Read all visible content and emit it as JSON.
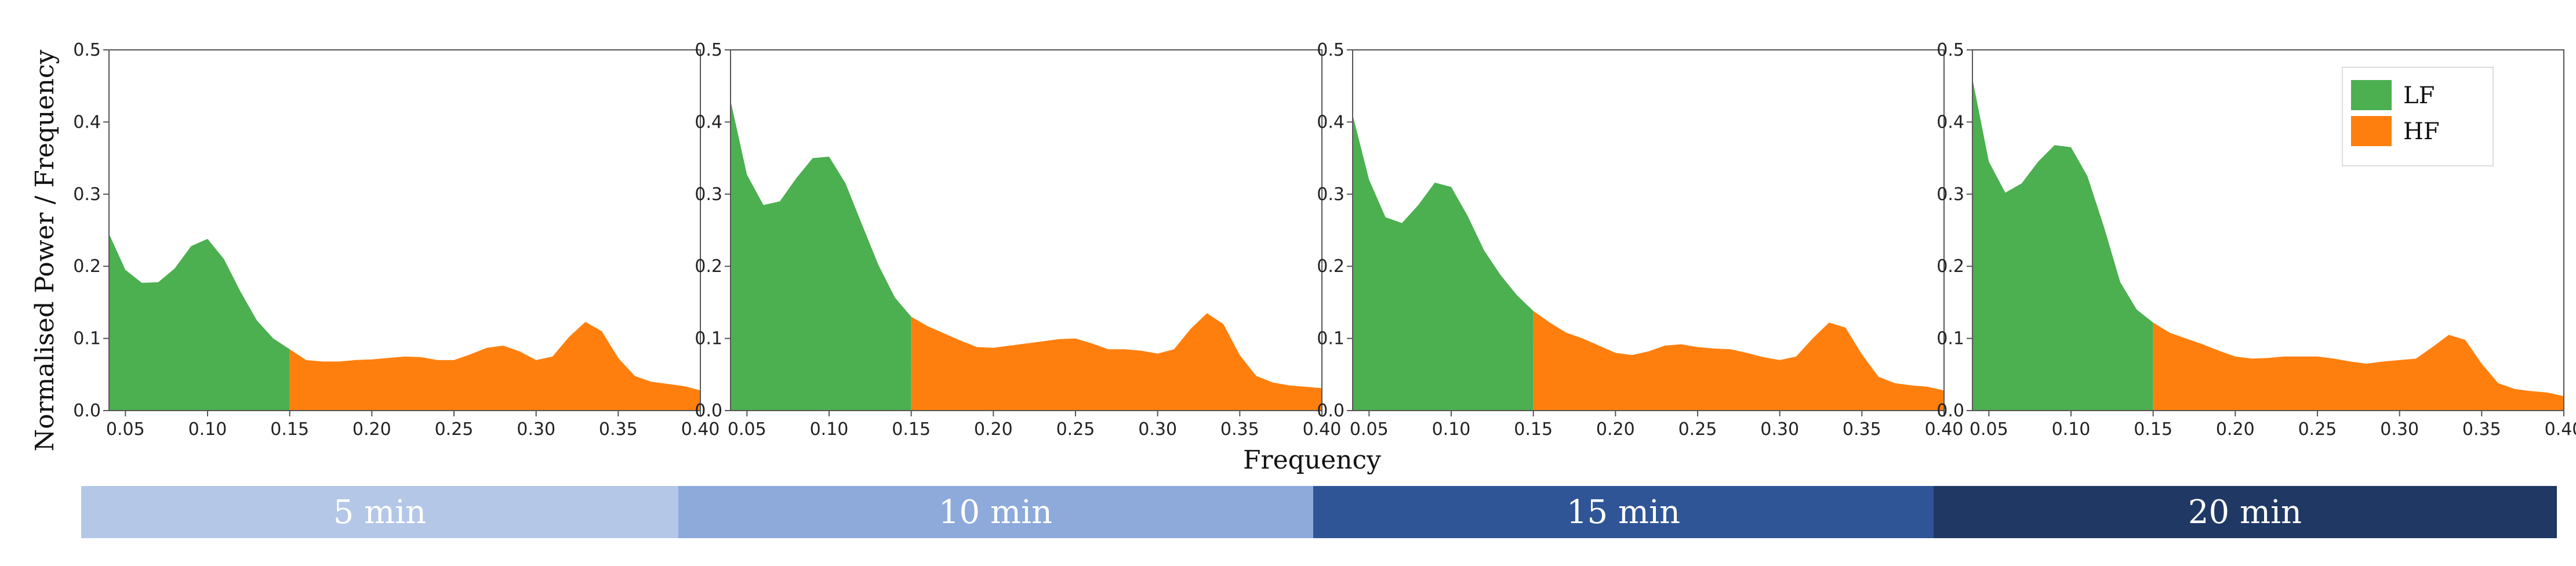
{
  "colors": {
    "lf": "#4caf50",
    "hf": "#ff7f0e",
    "axis": "#555555"
  },
  "y_axis_label": "Normalised Power / Frequency",
  "x_axis_label": "Frequency",
  "legend": [
    {
      "label": "LF",
      "color": "#4caf50"
    },
    {
      "label": "HF",
      "color": "#ff7f0e"
    }
  ],
  "duration_bands": [
    {
      "label": "5 min",
      "color": "#b4c7e7"
    },
    {
      "label": "10 min",
      "color": "#8eaadb"
    },
    {
      "label": "15 min",
      "color": "#2f5597"
    },
    {
      "label": "20 min",
      "color": "#203864"
    }
  ],
  "chart_data": [
    {
      "type": "area",
      "xlim": [
        0.04,
        0.4
      ],
      "ylim": [
        0,
        0.5
      ],
      "x_ticks": [
        "0.05",
        "0.10",
        "0.15",
        "0.20",
        "0.25",
        "0.30",
        "0.35",
        "0.40"
      ],
      "y_ticks": [
        "0.0",
        "0.1",
        "0.2",
        "0.3",
        "0.4",
        "0.5"
      ],
      "x": [
        0.04,
        0.05,
        0.06,
        0.07,
        0.08,
        0.09,
        0.1,
        0.11,
        0.12,
        0.13,
        0.14,
        0.15,
        0.16,
        0.17,
        0.18,
        0.19,
        0.2,
        0.21,
        0.22,
        0.23,
        0.24,
        0.25,
        0.26,
        0.27,
        0.28,
        0.29,
        0.3,
        0.31,
        0.32,
        0.33,
        0.34,
        0.35,
        0.36,
        0.37,
        0.38,
        0.39,
        0.4
      ],
      "y": [
        0.245,
        0.195,
        0.177,
        0.178,
        0.197,
        0.228,
        0.238,
        0.21,
        0.165,
        0.125,
        0.1,
        0.085,
        0.07,
        0.068,
        0.068,
        0.07,
        0.071,
        0.073,
        0.075,
        0.074,
        0.07,
        0.07,
        0.078,
        0.087,
        0.09,
        0.082,
        0.07,
        0.075,
        0.102,
        0.123,
        0.11,
        0.073,
        0.048,
        0.04,
        0.037,
        0.034,
        0.028
      ],
      "series": [
        {
          "name": "LF",
          "x_range": [
            0.04,
            0.15
          ]
        },
        {
          "name": "HF",
          "x_range": [
            0.15,
            0.4
          ]
        }
      ]
    },
    {
      "type": "area",
      "xlim": [
        0.04,
        0.4
      ],
      "ylim": [
        0,
        0.5
      ],
      "x_ticks": [
        "0.05",
        "0.10",
        "0.15",
        "0.20",
        "0.25",
        "0.30",
        "0.35",
        "0.40"
      ],
      "y_ticks": [
        "0.0",
        "0.1",
        "0.2",
        "0.3",
        "0.4",
        "0.5"
      ],
      "x": [
        0.04,
        0.05,
        0.06,
        0.07,
        0.08,
        0.09,
        0.1,
        0.11,
        0.12,
        0.13,
        0.14,
        0.15,
        0.16,
        0.17,
        0.18,
        0.19,
        0.2,
        0.21,
        0.22,
        0.23,
        0.24,
        0.25,
        0.26,
        0.27,
        0.28,
        0.29,
        0.3,
        0.31,
        0.32,
        0.33,
        0.34,
        0.35,
        0.36,
        0.37,
        0.38,
        0.39,
        0.4
      ],
      "y": [
        0.43,
        0.327,
        0.285,
        0.29,
        0.322,
        0.35,
        0.352,
        0.315,
        0.258,
        0.202,
        0.157,
        0.13,
        0.117,
        0.107,
        0.097,
        0.088,
        0.087,
        0.09,
        0.093,
        0.096,
        0.099,
        0.1,
        0.093,
        0.085,
        0.085,
        0.083,
        0.079,
        0.085,
        0.113,
        0.135,
        0.12,
        0.077,
        0.048,
        0.039,
        0.035,
        0.033,
        0.031
      ],
      "series": [
        {
          "name": "LF",
          "x_range": [
            0.04,
            0.15
          ]
        },
        {
          "name": "HF",
          "x_range": [
            0.15,
            0.4
          ]
        }
      ]
    },
    {
      "type": "area",
      "xlim": [
        0.04,
        0.4
      ],
      "ylim": [
        0,
        0.5
      ],
      "x_ticks": [
        "0.05",
        "0.10",
        "0.15",
        "0.20",
        "0.25",
        "0.30",
        "0.35",
        "0.40"
      ],
      "y_ticks": [
        "0.0",
        "0.1",
        "0.2",
        "0.3",
        "0.4",
        "0.5"
      ],
      "x": [
        0.04,
        0.05,
        0.06,
        0.07,
        0.08,
        0.09,
        0.1,
        0.11,
        0.12,
        0.13,
        0.14,
        0.15,
        0.16,
        0.17,
        0.18,
        0.19,
        0.2,
        0.21,
        0.22,
        0.23,
        0.24,
        0.25,
        0.26,
        0.27,
        0.28,
        0.29,
        0.3,
        0.31,
        0.32,
        0.33,
        0.34,
        0.35,
        0.36,
        0.37,
        0.38,
        0.39,
        0.4
      ],
      "y": [
        0.41,
        0.32,
        0.268,
        0.26,
        0.285,
        0.316,
        0.31,
        0.27,
        0.222,
        0.188,
        0.16,
        0.138,
        0.122,
        0.108,
        0.1,
        0.09,
        0.08,
        0.077,
        0.082,
        0.09,
        0.092,
        0.088,
        0.086,
        0.085,
        0.08,
        0.074,
        0.07,
        0.075,
        0.1,
        0.122,
        0.115,
        0.078,
        0.047,
        0.038,
        0.035,
        0.033,
        0.028
      ],
      "series": [
        {
          "name": "LF",
          "x_range": [
            0.04,
            0.15
          ]
        },
        {
          "name": "HF",
          "x_range": [
            0.15,
            0.4
          ]
        }
      ]
    },
    {
      "type": "area",
      "xlim": [
        0.04,
        0.4
      ],
      "ylim": [
        0,
        0.5
      ],
      "x_ticks": [
        "0.05",
        "0.10",
        "0.15",
        "0.20",
        "0.25",
        "0.30",
        "0.35",
        "0.40"
      ],
      "y_ticks": [
        "0.0",
        "0.1",
        "0.2",
        "0.3",
        "0.4",
        "0.5"
      ],
      "x": [
        0.04,
        0.05,
        0.06,
        0.07,
        0.08,
        0.09,
        0.1,
        0.11,
        0.12,
        0.13,
        0.14,
        0.15,
        0.16,
        0.17,
        0.18,
        0.19,
        0.2,
        0.21,
        0.22,
        0.23,
        0.24,
        0.25,
        0.26,
        0.27,
        0.28,
        0.29,
        0.3,
        0.31,
        0.32,
        0.33,
        0.34,
        0.35,
        0.36,
        0.37,
        0.38,
        0.39,
        0.4
      ],
      "y": [
        0.46,
        0.345,
        0.302,
        0.315,
        0.345,
        0.368,
        0.365,
        0.325,
        0.255,
        0.178,
        0.14,
        0.122,
        0.108,
        0.1,
        0.092,
        0.083,
        0.075,
        0.072,
        0.073,
        0.075,
        0.075,
        0.075,
        0.072,
        0.068,
        0.065,
        0.068,
        0.07,
        0.072,
        0.088,
        0.105,
        0.098,
        0.065,
        0.038,
        0.03,
        0.027,
        0.025,
        0.02
      ],
      "series": [
        {
          "name": "LF",
          "x_range": [
            0.04,
            0.15
          ]
        },
        {
          "name": "HF",
          "x_range": [
            0.15,
            0.4
          ]
        }
      ]
    }
  ]
}
